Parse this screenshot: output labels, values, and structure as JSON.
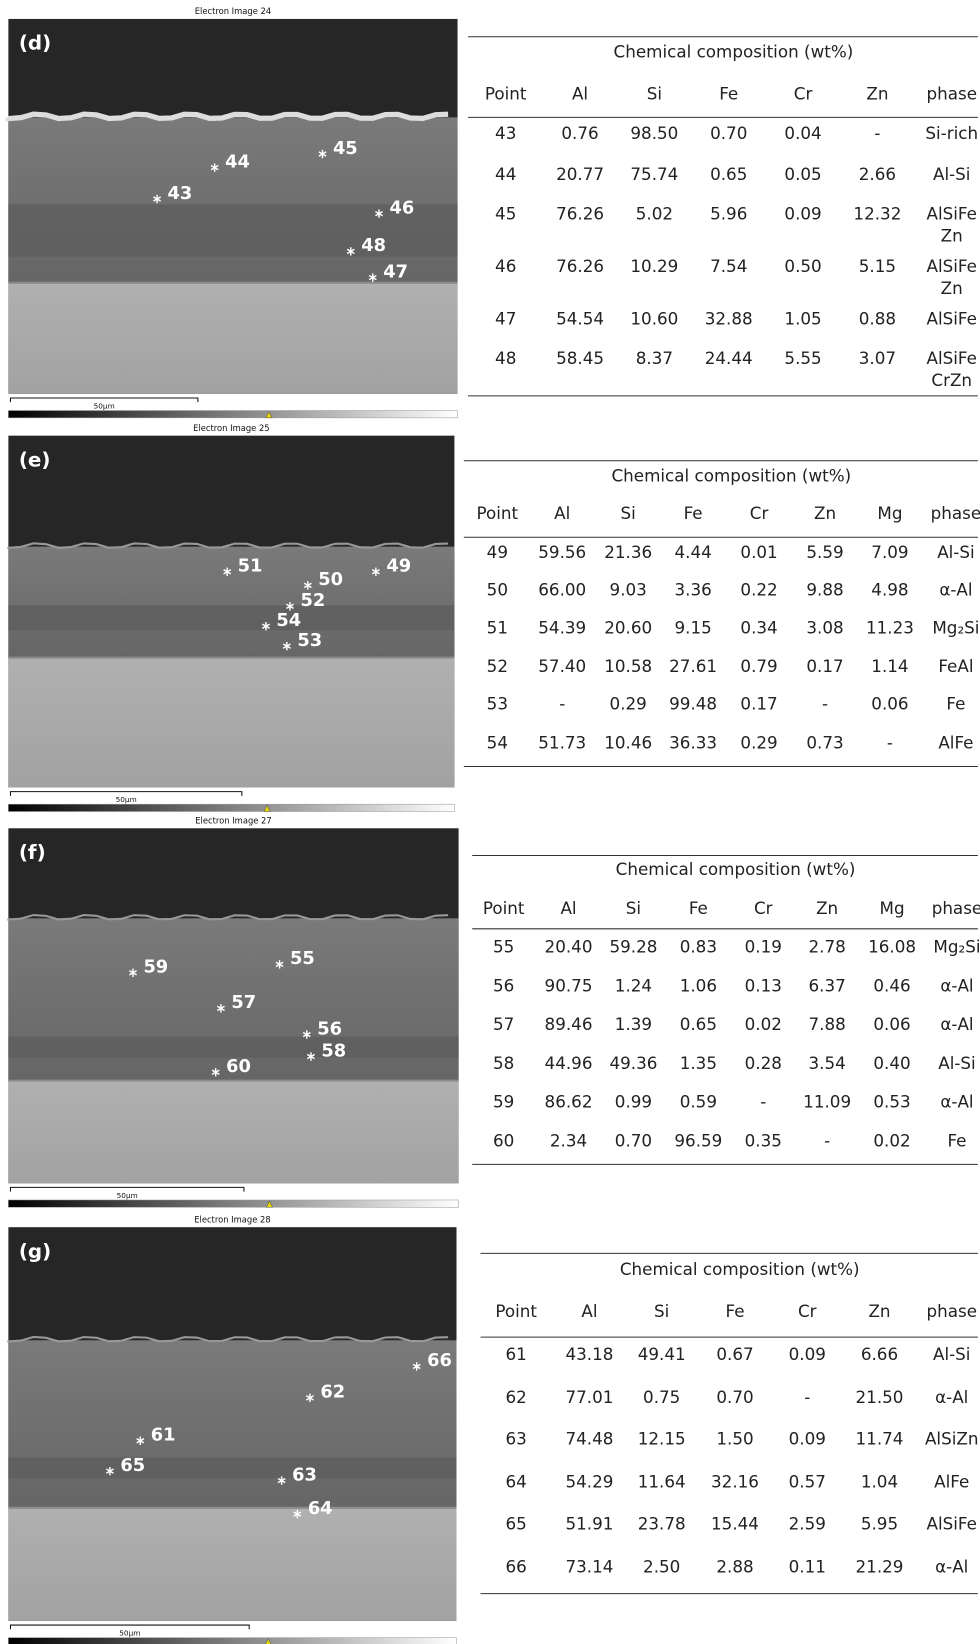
{
  "panels": [
    {
      "image_title": "Electron Image 24",
      "label": "(d)",
      "scale_label": "50µm",
      "points": [
        "43",
        "44",
        "45",
        "46",
        "48",
        "47"
      ],
      "table": {
        "caption": "Chemical composition (wt%)",
        "columns": [
          "Point",
          "Al",
          "Si",
          "Fe",
          "Cr",
          "Zn",
          "phase"
        ],
        "rows": [
          [
            "43",
            "0.76",
            "98.50",
            "0.70",
            "0.04",
            "-",
            "Si-rich"
          ],
          [
            "44",
            "20.77",
            "75.74",
            "0.65",
            "0.05",
            "2.66",
            "Al-Si"
          ],
          [
            "45",
            "76.26",
            "5.02",
            "5.96",
            "0.09",
            "12.32",
            [
              "AlSiFe",
              "Zn"
            ]
          ],
          [
            "46",
            "76.26",
            "10.29",
            "7.54",
            "0.50",
            "5.15",
            [
              "AlSiFe",
              "Zn"
            ]
          ],
          [
            "47",
            "54.54",
            "10.60",
            "32.88",
            "1.05",
            "0.88",
            "AlSiFe"
          ],
          [
            "48",
            "58.45",
            "8.37",
            "24.44",
            "5.55",
            "3.07",
            [
              "AlSiFe",
              "CrZn"
            ]
          ]
        ]
      }
    },
    {
      "image_title": "Electron Image 25",
      "label": "(e)",
      "scale_label": "50µm",
      "points": [
        "51",
        "50",
        "49",
        "52",
        "54",
        "53"
      ],
      "table": {
        "caption": "Chemical composition (wt%)",
        "columns": [
          "Point",
          "Al",
          "Si",
          "Fe",
          "Cr",
          "Zn",
          "Mg",
          "phase"
        ],
        "rows": [
          [
            "49",
            "59.56",
            "21.36",
            "4.44",
            "0.01",
            "5.59",
            "7.09",
            "Al-Si"
          ],
          [
            "50",
            "66.00",
            "9.03",
            "3.36",
            "0.22",
            "9.88",
            "4.98",
            "α-Al"
          ],
          [
            "51",
            "54.39",
            "20.60",
            "9.15",
            "0.34",
            "3.08",
            "11.23",
            "Mg₂Si"
          ],
          [
            "52",
            "57.40",
            "10.58",
            "27.61",
            "0.79",
            "0.17",
            "1.14",
            "FeAl"
          ],
          [
            "53",
            "-",
            "0.29",
            "99.48",
            "0.17",
            "-",
            "0.06",
            "Fe"
          ],
          [
            "54",
            "51.73",
            "10.46",
            "36.33",
            "0.29",
            "0.73",
            "-",
            "AlFe"
          ]
        ]
      }
    },
    {
      "image_title": "Electron Image 27",
      "label": "(f)",
      "scale_label": "50µm",
      "points": [
        "59",
        "55",
        "57",
        "56",
        "58",
        "60"
      ],
      "table": {
        "caption": "Chemical composition (wt%)",
        "columns": [
          "Point",
          "Al",
          "Si",
          "Fe",
          "Cr",
          "Zn",
          "Mg",
          "phase"
        ],
        "rows": [
          [
            "55",
            "20.40",
            "59.28",
            "0.83",
            "0.19",
            "2.78",
            "16.08",
            "Mg₂Si"
          ],
          [
            "56",
            "90.75",
            "1.24",
            "1.06",
            "0.13",
            "6.37",
            "0.46",
            "α-Al"
          ],
          [
            "57",
            "89.46",
            "1.39",
            "0.65",
            "0.02",
            "7.88",
            "0.06",
            "α-Al"
          ],
          [
            "58",
            "44.96",
            "49.36",
            "1.35",
            "0.28",
            "3.54",
            "0.40",
            "Al-Si"
          ],
          [
            "59",
            "86.62",
            "0.99",
            "0.59",
            "-",
            "11.09",
            "0.53",
            "α-Al"
          ],
          [
            "60",
            "2.34",
            "0.70",
            "96.59",
            "0.35",
            "-",
            "0.02",
            "Fe"
          ]
        ]
      }
    },
    {
      "image_title": "Electron Image 28",
      "label": "(g)",
      "scale_label": "50µm",
      "points": [
        "66",
        "62",
        "61",
        "65",
        "63",
        "64"
      ],
      "table": {
        "caption": "Chemical composition (wt%)",
        "columns": [
          "Point",
          "Al",
          "Si",
          "Fe",
          "Cr",
          "Zn",
          "phase"
        ],
        "rows": [
          [
            "61",
            "43.18",
            "49.41",
            "0.67",
            "0.09",
            "6.66",
            "Al-Si"
          ],
          [
            "62",
            "77.01",
            "0.75",
            "0.70",
            "-",
            "21.50",
            "α-Al"
          ],
          [
            "63",
            "74.48",
            "12.15",
            "1.50",
            "0.09",
            "11.74",
            "AlSiZn"
          ],
          [
            "64",
            "54.29",
            "11.64",
            "32.16",
            "0.57",
            "1.04",
            "AlFe"
          ],
          [
            "65",
            "51.91",
            "23.78",
            "15.44",
            "2.59",
            "5.95",
            "AlSiFe"
          ],
          [
            "66",
            "73.14",
            "2.50",
            "2.88",
            "0.11",
            "21.29",
            "α-Al"
          ]
        ]
      }
    }
  ]
}
